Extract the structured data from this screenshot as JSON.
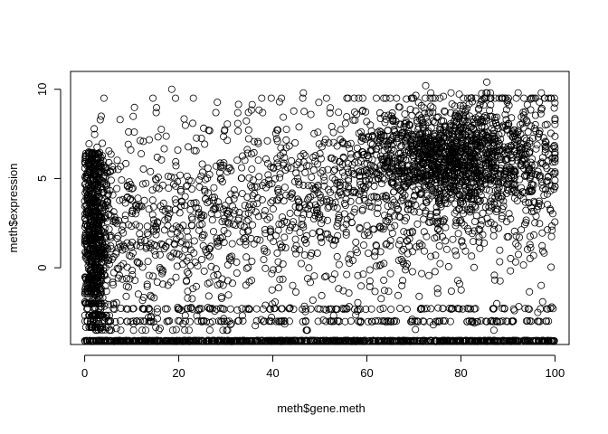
{
  "chart_data": {
    "type": "scatter",
    "title": "",
    "xlabel": "meth$gene.meth",
    "ylabel": "meth$expression",
    "xlim": [
      -3,
      103
    ],
    "ylim": [
      -4.3,
      11.0
    ],
    "x_ticks": [
      0,
      20,
      40,
      60,
      80,
      100
    ],
    "y_ticks": [
      0,
      5,
      10
    ],
    "x_tick_labels": [
      "0",
      "20",
      "40",
      "60",
      "80",
      "100"
    ],
    "y_tick_labels": [
      "0",
      "5",
      "10"
    ],
    "grid": false,
    "legend": "none",
    "marker": "open-circle",
    "series": [
      {
        "points": "approximate cloud; generated by script from the clusters below",
        "clusters": [
          {
            "x_range": [
              0,
              100
            ],
            "y_value": -4.1,
            "description": "dense floor band at minimum expression",
            "count": 900
          },
          {
            "x_range": [
              0,
              100
            ],
            "y_value": -3.0,
            "description": "sparse second band",
            "count": 150
          },
          {
            "x_range": [
              0,
              100
            ],
            "y_value": -2.3,
            "description": "sparse third band",
            "count": 120
          },
          {
            "x_center": 2,
            "x_spread": 2.5,
            "y_range": [
              -3.5,
              6.5
            ],
            "description": "dense vertical column at low methylation",
            "count": 700
          },
          {
            "x_center": 78,
            "x_spread": 10,
            "y_center": 6.2,
            "y_spread": 1.4,
            "description": "dense cluster at high methylation",
            "count": 1200
          },
          {
            "x_range": [
              0,
              100
            ],
            "y_range": [
              -3.5,
              9.5
            ],
            "description": "diffuse background scatter",
            "count": 1700
          }
        ],
        "highlights": [
          {
            "x": 18.5,
            "y": 10.0
          },
          {
            "x": 72.5,
            "y": 10.2
          },
          {
            "x": 85.5,
            "y": 10.4
          },
          {
            "x": 46.5,
            "y": 9.8
          }
        ]
      }
    ]
  }
}
